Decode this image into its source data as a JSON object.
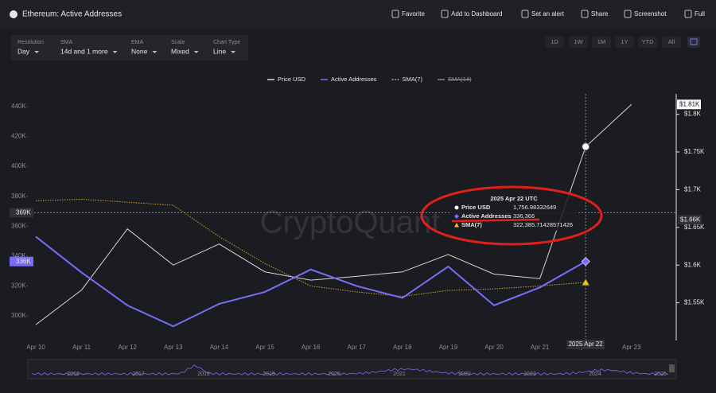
{
  "header": {
    "title": "Ethereum: Active Addresses",
    "actions": [
      "Favorite",
      "Add to Dashboard",
      "Set an alert",
      "Share",
      "Screenshot",
      "Full"
    ]
  },
  "controls": [
    {
      "label": "Resolution",
      "value": "Day"
    },
    {
      "label": "SMA",
      "value": "14d and 1 more"
    },
    {
      "label": "EMA",
      "value": "None"
    },
    {
      "label": "Scale",
      "value": "Mixed"
    },
    {
      "label": "Chart Type",
      "value": "Line"
    }
  ],
  "ranges": [
    "1D",
    "1W",
    "1M",
    "1Y",
    "YTD",
    "All"
  ],
  "chart_data": {
    "type": "line",
    "watermark": "CryptoQuant",
    "categories": [
      "Apr 10",
      "Apr 11",
      "Apr 12",
      "Apr 13",
      "Apr 14",
      "Apr 15",
      "Apr 16",
      "Apr 17",
      "Apr 18",
      "Apr 19",
      "Apr 20",
      "Apr 21",
      "Apr 22",
      "Apr 23"
    ],
    "series": [
      {
        "name": "Price USD",
        "color": "#d6d6d6",
        "axis": "y2",
        "marker": "circle",
        "values": [
          1521,
          1567,
          1648,
          1600,
          1628,
          1591,
          1580,
          1585,
          1591,
          1614,
          1588,
          1582,
          1756.98332649,
          1813
        ],
        "value_labels": [
          null,
          null,
          null,
          null,
          null,
          null,
          null,
          null,
          null,
          null,
          null,
          null,
          "1,756.98332649",
          null
        ]
      },
      {
        "name": "Active Addresses",
        "color": "#7b6cf6",
        "axis": "y",
        "marker": "diamond",
        "values": [
          353000,
          329000,
          307000,
          293000,
          308000,
          316000,
          331000,
          320000,
          312000,
          333000,
          307000,
          319000,
          336366,
          null
        ],
        "value_labels": [
          null,
          null,
          null,
          null,
          null,
          null,
          null,
          null,
          null,
          null,
          null,
          null,
          "336,366",
          null
        ]
      },
      {
        "name": "SMA(7)",
        "color": "#c9a227",
        "axis": "y",
        "marker": "triangle",
        "dashed": true,
        "values": [
          377000,
          378000,
          376000,
          374000,
          353000,
          335000,
          320000,
          316000,
          313000,
          317000,
          318000,
          320000,
          322385.71428571426,
          null
        ],
        "value_labels": [
          null,
          null,
          null,
          null,
          null,
          null,
          null,
          null,
          null,
          null,
          null,
          null,
          "322,385.71428571426",
          null
        ]
      },
      {
        "name": "SMA(14)",
        "color": "#8a8a8a",
        "hidden": true
      }
    ],
    "ylim": [
      283500,
      448500
    ],
    "yticks": [
      {
        "value": 300000,
        "label": "300K"
      },
      {
        "value": 320000,
        "label": "320K"
      },
      {
        "value": 340000,
        "label": "340K"
      },
      {
        "value": 360000,
        "label": "360K"
      },
      {
        "value": 380000,
        "label": "380K"
      },
      {
        "value": 400000,
        "label": "400K"
      },
      {
        "value": 420000,
        "label": "420K"
      },
      {
        "value": 440000,
        "label": "440K"
      }
    ],
    "y2lim": [
      1500,
      1827
    ],
    "y2ticks": [
      {
        "value": 1550,
        "label": "$1.55K"
      },
      {
        "value": 1600,
        "label": "$1.6K"
      },
      {
        "value": 1650,
        "label": "$1.65K"
      },
      {
        "value": 1700,
        "label": "$1.7K"
      },
      {
        "value": 1750,
        "label": "$1.75K"
      },
      {
        "value": 1800,
        "label": "$1.8K"
      }
    ],
    "tooltip": {
      "title": "2025 Apr 22 UTC",
      "index": 12
    },
    "crosshair": {
      "index": 12,
      "x_label": "2025 Apr 22",
      "y": {
        "value": 369000,
        "label": "369K"
      },
      "y2": {
        "value": 1660,
        "label": "$1.66K"
      }
    },
    "last_value_tags": [
      {
        "axis": "y",
        "value": 336366,
        "label": "336K",
        "color": "#7b6cf6"
      },
      {
        "axis": "y2",
        "value": 1813,
        "label": "$1.81K",
        "color": "#ffffff"
      }
    ],
    "navigator_years": [
      "2016",
      "2017",
      "2018",
      "2019",
      "2020",
      "2021",
      "2022",
      "2023",
      "2024",
      "2025"
    ]
  }
}
